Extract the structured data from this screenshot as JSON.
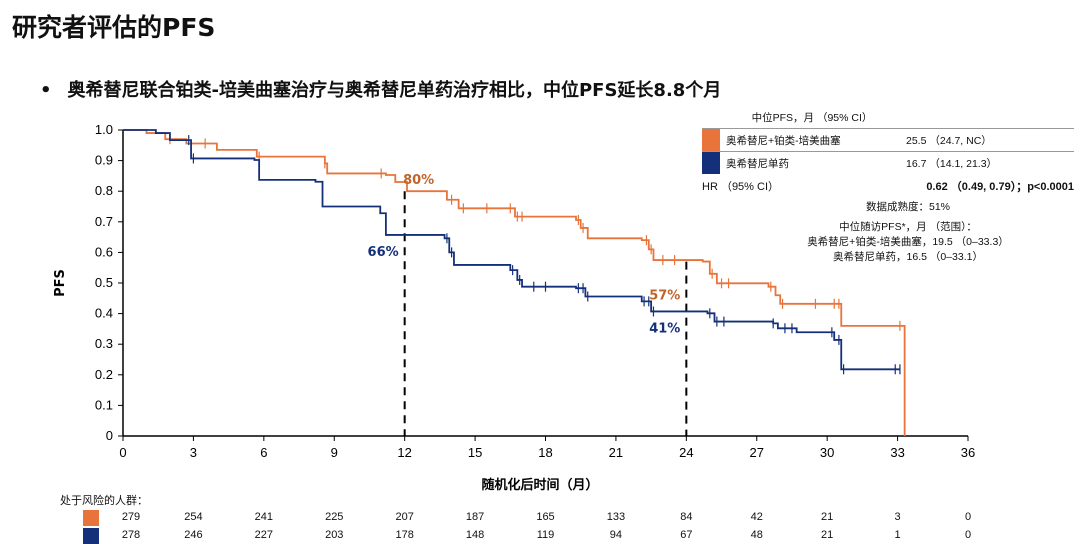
{
  "title": "研究者评估的PFS",
  "bullet": "奥希替尼联合铂类-培美曲塞治疗与奥希替尼单药治疗相比，中位PFS延长8.8个月",
  "bullet_dot": "•",
  "legend": {
    "header": "中位PFS，月 （95% CI）",
    "rows": [
      {
        "name": "奥希替尼+铂类-培美曲塞",
        "value": "25.5 （24.7, NC）",
        "color": "#e8743b"
      },
      {
        "name": "奥希替尼单药",
        "value": "16.7 （14.1, 21.3）",
        "color": "#15307a"
      }
    ],
    "hr_label": "HR （95% CI）",
    "hr_value": "0.62 （0.49, 0.79）；p<0.0001",
    "maturity": "数据成熟度：51%",
    "followup_title": "中位随访PFS*，月 （范围）：",
    "followup_1": "奥希替尼+铂类-培美曲塞，19.5 （0–33.3）",
    "followup_2": "奥希替尼单药，16.5 （0–33.1）"
  },
  "risk": {
    "title": "处于风险的人群：",
    "rows": [
      {
        "color": "#e8743b",
        "values": [
          "279",
          "254",
          "241",
          "225",
          "207",
          "187",
          "165",
          "133",
          "84",
          "42",
          "21",
          "3",
          "0"
        ]
      },
      {
        "color": "#15307a",
        "values": [
          "278",
          "246",
          "227",
          "203",
          "178",
          "148",
          "119",
          "94",
          "67",
          "48",
          "21",
          "1",
          "0"
        ]
      }
    ]
  },
  "chart_data": {
    "type": "line",
    "subtype": "kaplan-meier step",
    "xlabel": "随机化后时间（月）",
    "ylabel": "PFS",
    "xlim": [
      0,
      36
    ],
    "ylim": [
      0,
      1.0
    ],
    "xticks": [
      0,
      3,
      6,
      9,
      12,
      15,
      18,
      21,
      24,
      27,
      30,
      33,
      36
    ],
    "yticks": [
      "0",
      "0.1",
      "0.2",
      "0.3",
      "0.4",
      "0.5",
      "0.6",
      "0.7",
      "0.8",
      "0.9",
      "1.0"
    ],
    "grid": false,
    "reference_lines_x": [
      12,
      24
    ],
    "annotations": [
      {
        "text": "80%",
        "x": 12,
        "y": 0.8,
        "color": "#c0652a"
      },
      {
        "text": "66%",
        "x": 12,
        "y": 0.66,
        "color": "#15307a"
      },
      {
        "text": "57%",
        "x": 24,
        "y": 0.57,
        "color": "#c0652a"
      },
      {
        "text": "41%",
        "x": 24,
        "y": 0.41,
        "color": "#15307a"
      }
    ],
    "series": [
      {
        "color": "#e8743b",
        "steps": [
          [
            0,
            1.0
          ],
          [
            1,
            0.99
          ],
          [
            1.8,
            0.97
          ],
          [
            2.7,
            0.956
          ],
          [
            4,
            0.935
          ],
          [
            5.7,
            0.913
          ],
          [
            8.6,
            0.891
          ],
          [
            8.7,
            0.858
          ],
          [
            11.2,
            0.853
          ],
          [
            11.6,
            0.83
          ],
          [
            12.1,
            0.8
          ],
          [
            13.8,
            0.772
          ],
          [
            14.3,
            0.744
          ],
          [
            16.7,
            0.717
          ],
          [
            19.3,
            0.706
          ],
          [
            19.5,
            0.68
          ],
          [
            19.8,
            0.646
          ],
          [
            22.1,
            0.64
          ],
          [
            22.4,
            0.61
          ],
          [
            22.6,
            0.575
          ],
          [
            24.7,
            0.57
          ],
          [
            25,
            0.53
          ],
          [
            25.3,
            0.499
          ],
          [
            27.5,
            0.488
          ],
          [
            27.8,
            0.46
          ],
          [
            28.0,
            0.432
          ],
          [
            30.6,
            0.36
          ],
          [
            33.3,
            0
          ]
        ],
        "censored": [
          2,
          3.5,
          5.8,
          8.6,
          11,
          14,
          14.5,
          15.5,
          16.5,
          16.8,
          17,
          19.4,
          19.6,
          22.3,
          22.5,
          23,
          23.5,
          25.1,
          25.5,
          25.8,
          27.6,
          28.1,
          29.5,
          30.3,
          30.5,
          33.1
        ]
      },
      {
        "color": "#15307a",
        "steps": [
          [
            0,
            1.0
          ],
          [
            1.4,
            0.99
          ],
          [
            2,
            0.967
          ],
          [
            2.9,
            0.907
          ],
          [
            5.6,
            0.902
          ],
          [
            5.8,
            0.837
          ],
          [
            8.2,
            0.831
          ],
          [
            8.5,
            0.75
          ],
          [
            10.96,
            0.728
          ],
          [
            11.2,
            0.657
          ],
          [
            13.7,
            0.646
          ],
          [
            13.9,
            0.6
          ],
          [
            14.1,
            0.559
          ],
          [
            16.5,
            0.542
          ],
          [
            16.8,
            0.51
          ],
          [
            17.0,
            0.488
          ],
          [
            19.3,
            0.483
          ],
          [
            19.7,
            0.456
          ],
          [
            22.1,
            0.44
          ],
          [
            22.5,
            0.407
          ],
          [
            24.9,
            0.401
          ],
          [
            25.2,
            0.374
          ],
          [
            27.7,
            0.368
          ],
          [
            27.9,
            0.352
          ],
          [
            28.7,
            0.339
          ],
          [
            30.3,
            0.314
          ],
          [
            30.6,
            0.218
          ],
          [
            33.1,
            0.218
          ]
        ],
        "censored": [
          2.8,
          3,
          13.8,
          14,
          16.6,
          16.9,
          17.5,
          18,
          19.4,
          19.6,
          19.8,
          22.2,
          22.4,
          22.6,
          25,
          25.3,
          25.6,
          27.7,
          28.2,
          28.5,
          30.2,
          30.5,
          30.7,
          32.9,
          33.1
        ]
      }
    ]
  }
}
